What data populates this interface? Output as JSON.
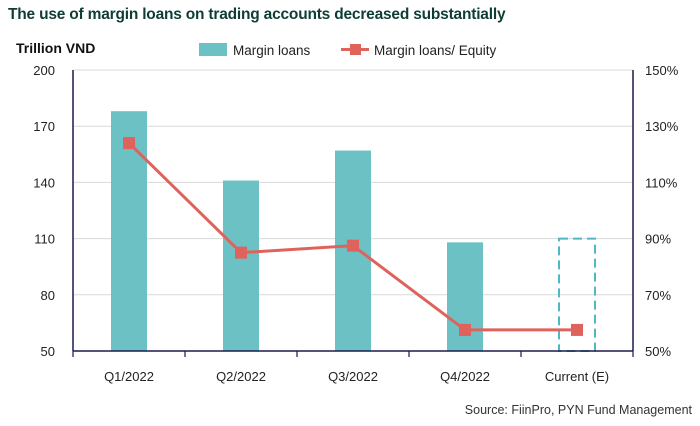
{
  "title": "The use of margin loans on trading accounts decreased substantially",
  "source": "Source: FiinPro, PYN Fund Management",
  "colors": {
    "bar": "#6cc1c5",
    "line": "#e0625c",
    "estimate": "#4fb8c4",
    "axis": "#1b1b4b",
    "title": "#0f3d36"
  },
  "chart_data": {
    "type": "bar",
    "categories": [
      "Q1/2022",
      "Q2/2022",
      "Q3/2022",
      "Q4/2022",
      "Current (E)"
    ],
    "ylabel": "Trillion VND",
    "ylim": [
      50,
      200
    ],
    "yticks": [
      "50",
      "80",
      "110",
      "140",
      "170",
      "200"
    ],
    "y2lim": [
      50,
      150
    ],
    "y2ticks": [
      "50%",
      "70%",
      "90%",
      "110%",
      "130%",
      "150%"
    ],
    "legend_position": "top",
    "series": [
      {
        "name": "Margin loans",
        "type": "bar",
        "axis": "left",
        "values": [
          178,
          141,
          157,
          108,
          110
        ],
        "estimated": [
          false,
          false,
          false,
          false,
          true
        ]
      },
      {
        "name": "Margin loans/ Equity",
        "type": "line",
        "axis": "right",
        "values": [
          124,
          85,
          87.5,
          57.5,
          57.5
        ]
      }
    ]
  }
}
